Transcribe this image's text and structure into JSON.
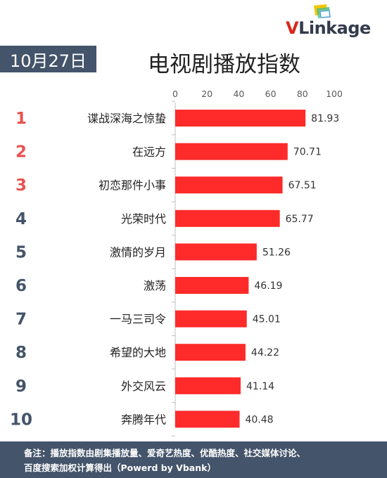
{
  "brand": {
    "v": "V",
    "rest": "Linkage"
  },
  "date": "10月27日",
  "title": "电视剧播放指数",
  "footer": {
    "line1": "备注：播放指数由剧集播放量、爱奇艺热度、优酷热度、社交媒体讨论、",
    "line2": "百度搜索加权计算得出（Powerd by Vbank）"
  },
  "colors": {
    "bar": "#ff2a2a",
    "rank_top": "#e8534f",
    "rank_rest": "#44546a",
    "banner": "#44546a"
  },
  "chart_data": {
    "type": "bar",
    "orientation": "horizontal",
    "categories": [
      "谍战深海之惊蛰",
      "在远方",
      "初恋那件小事",
      "光荣时代",
      "激情的岁月",
      "激荡",
      "一马三司令",
      "希望的大地",
      "外交风云",
      "奔腾年代"
    ],
    "ranks": [
      "1",
      "2",
      "3",
      "4",
      "5",
      "6",
      "7",
      "8",
      "9",
      "10"
    ],
    "values": [
      81.93,
      70.71,
      67.51,
      65.77,
      51.26,
      46.19,
      45.01,
      44.22,
      41.14,
      40.48
    ],
    "value_labels": [
      "81.93",
      "70.71",
      "67.51",
      "65.77",
      "51.26",
      "46.19",
      "45.01",
      "44.22",
      "41.14",
      "40.48"
    ],
    "xticks": [
      "0",
      "20",
      "40",
      "60",
      "80",
      "100"
    ],
    "xlim": [
      0,
      100
    ],
    "axis_position": "top",
    "grid": false,
    "legend": "none"
  }
}
